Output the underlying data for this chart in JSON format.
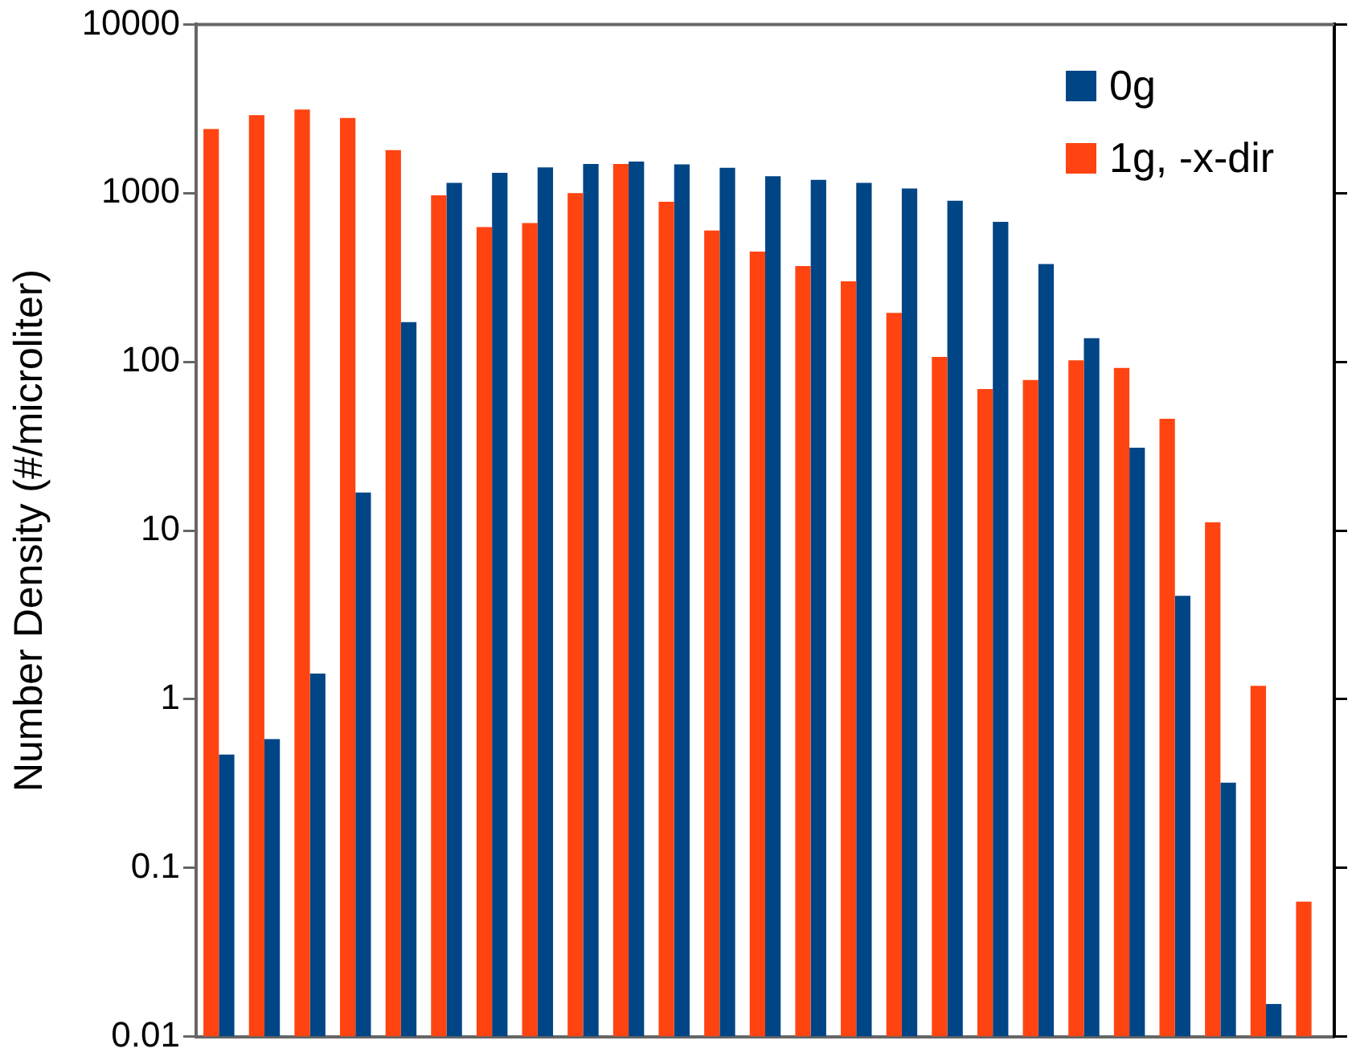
{
  "chart_data": {
    "type": "bar",
    "ylabel": "Number Density (#/microliter)",
    "categories": [
      null,
      null,
      null,
      null,
      null,
      null,
      null,
      null,
      null,
      null,
      null,
      null,
      null,
      null,
      null,
      null,
      null,
      null,
      null,
      null,
      null,
      null,
      null,
      null,
      null
    ],
    "series": [
      {
        "name": "1g, -x-dir",
        "color": "#ff4412",
        "values": [
          2400,
          2900,
          3130,
          2790,
          1800,
          970,
          630,
          665,
          1000,
          1490,
          890,
          600,
          450,
          370,
          300,
          195,
          107,
          69,
          78,
          102,
          92,
          46,
          11.2,
          1.2,
          0.063
        ]
      },
      {
        "name": "0g",
        "color": "#004586",
        "values": [
          0.47,
          0.58,
          1.42,
          16.8,
          172,
          1150,
          1320,
          1420,
          1490,
          1540,
          1480,
          1415,
          1260,
          1200,
          1150,
          1065,
          900,
          676,
          380,
          138,
          31,
          4.1,
          0.32,
          0.0156,
          null
        ]
      }
    ],
    "log": true,
    "ylim": [
      0.01,
      10000
    ],
    "yticks": [
      0.01,
      0.1,
      1,
      10,
      100,
      1000,
      10000
    ],
    "grid": false,
    "legend": "top right"
  }
}
